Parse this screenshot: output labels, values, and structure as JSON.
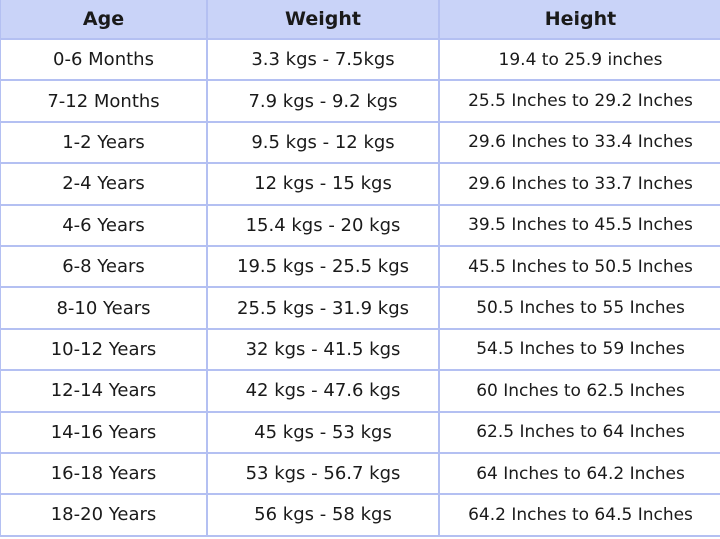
{
  "table": {
    "headers": [
      "Age",
      "Weight",
      "Height"
    ],
    "rows": [
      [
        "0-6 Months",
        "3.3 kgs - 7.5kgs",
        "19.4 to 25.9 inches"
      ],
      [
        "7-12 Months",
        "7.9 kgs - 9.2 kgs",
        "25.5 Inches to 29.2 Inches"
      ],
      [
        "1-2 Years",
        "9.5 kgs - 12 kgs",
        "29.6 Inches to 33.4 Inches"
      ],
      [
        "2-4 Years",
        "12 kgs - 15 kgs",
        "29.6 Inches to 33.7 Inches"
      ],
      [
        "4-6 Years",
        "15.4 kgs - 20 kgs",
        "39.5 Inches to 45.5 Inches"
      ],
      [
        "6-8 Years",
        "19.5 kgs - 25.5 kgs",
        "45.5 Inches to 50.5 Inches"
      ],
      [
        "8-10 Years",
        "25.5 kgs - 31.9 kgs",
        "50.5 Inches to 55 Inches"
      ],
      [
        "10-12 Years",
        "32 kgs - 41.5 kgs",
        "54.5 Inches to 59 Inches"
      ],
      [
        "12-14 Years",
        "42 kgs - 47.6 kgs",
        "60 Inches to 62.5 Inches"
      ],
      [
        "14-16 Years",
        "45 kgs - 53 kgs",
        "62.5 Inches to 64 Inches"
      ],
      [
        "16-18 Years",
        "53 kgs - 56.7 kgs",
        "64 Inches to 64.2 Inches"
      ],
      [
        "18-20 Years",
        "56 kgs - 58 kgs",
        "64.2 Inches to 64.5 Inches"
      ]
    ]
  },
  "colors": {
    "header_bg": "#c9d3f8",
    "border": "#b4c0f2"
  }
}
